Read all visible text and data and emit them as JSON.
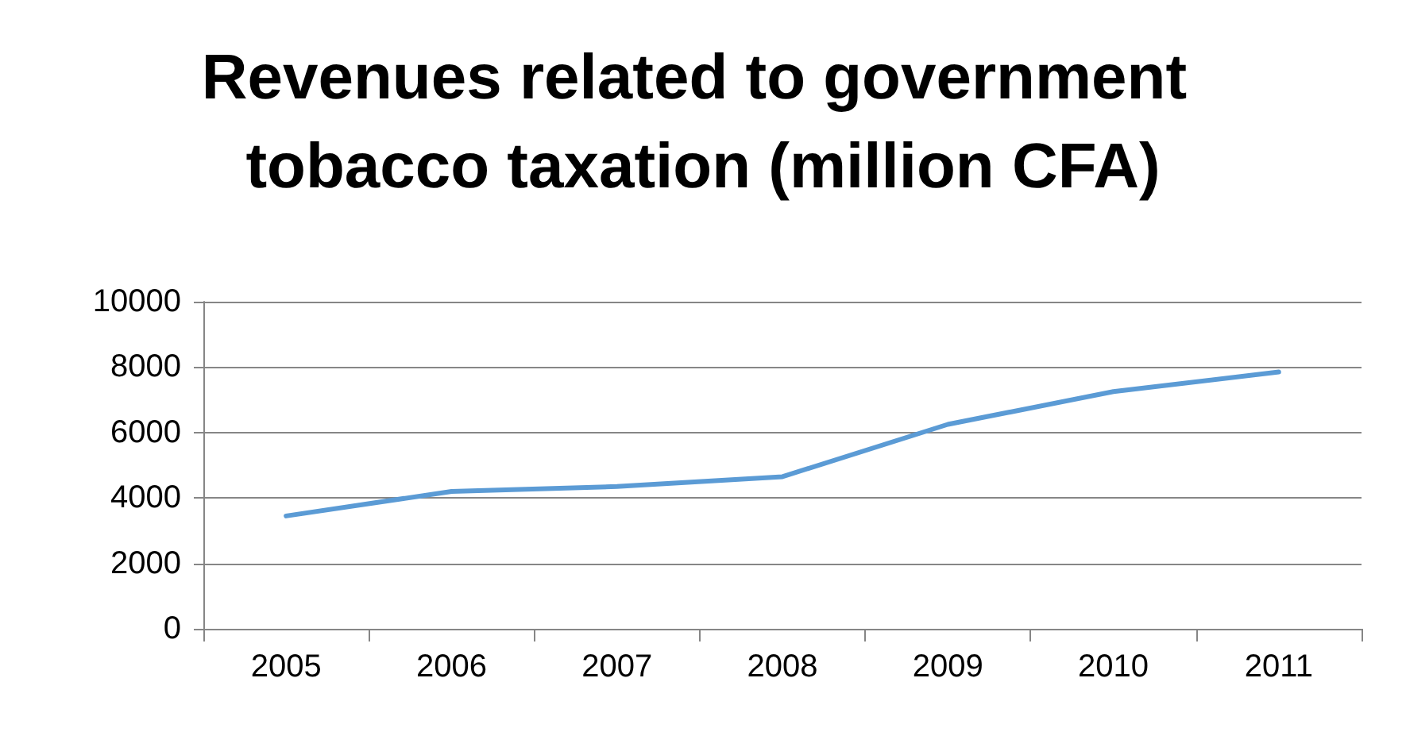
{
  "chart_data": {
    "type": "line",
    "title": "Revenues related to government tobacco taxation (million CFA)",
    "categories": [
      "2005",
      "2006",
      "2007",
      "2008",
      "2009",
      "2010",
      "2011"
    ],
    "series": [
      {
        "color": "#5b9bd5",
        "values": [
          3450,
          4200,
          4350,
          4650,
          6250,
          7250,
          7850
        ]
      }
    ],
    "ylim": [
      0,
      10000
    ],
    "yticks": [
      0,
      2000,
      4000,
      6000,
      8000,
      10000
    ],
    "grid": "y",
    "marker": "none",
    "line_style": "solid"
  }
}
